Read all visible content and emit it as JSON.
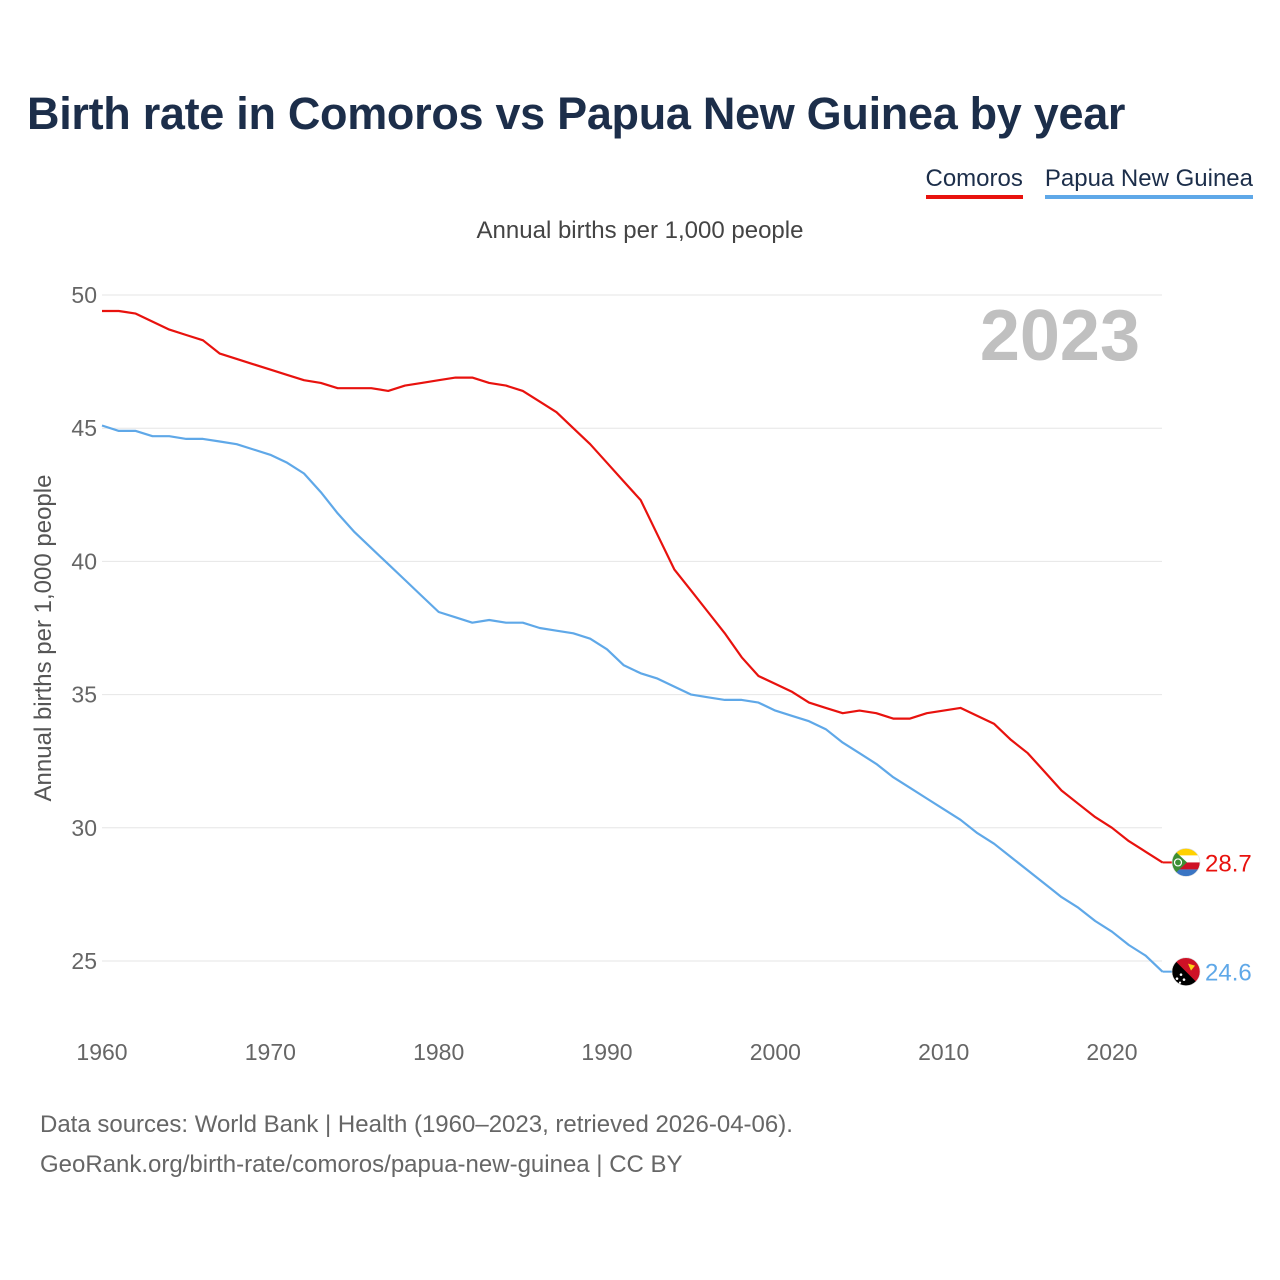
{
  "title": "Birth rate in Comoros vs Papua New Guinea by year",
  "legend": {
    "comoros": "Comoros",
    "png": "Papua New Guinea"
  },
  "subtitle": "Annual births per 1,000 people",
  "source": {
    "line1": "Data sources: World Bank | Health (1960–2023, retrieved 2026-04-06).",
    "line2": "GeoRank.org/birth-rate/comoros/papua-new-guinea | CC BY"
  },
  "colors": {
    "comoros": "#e8120e",
    "png": "#5fa8e8",
    "title": "#1c2e4a",
    "grid": "#e6e6e6",
    "year_watermark": "#c0c0c0"
  },
  "chart_data": {
    "type": "line",
    "title": "Birth rate in Comoros vs Papua New Guinea by year",
    "ylabel": "Annual births per 1,000 people",
    "xlabel": "",
    "xlim": [
      1960,
      2023
    ],
    "ylim": [
      23,
      50
    ],
    "year_label": "2023",
    "y_ticks": [
      25,
      30,
      35,
      40,
      45,
      50
    ],
    "x_ticks": [
      1960,
      1970,
      1980,
      1990,
      2000,
      2010,
      2020
    ],
    "grid": true,
    "x": [
      1960,
      1961,
      1962,
      1963,
      1964,
      1965,
      1966,
      1967,
      1968,
      1969,
      1970,
      1971,
      1972,
      1973,
      1974,
      1975,
      1976,
      1977,
      1978,
      1979,
      1980,
      1981,
      1982,
      1983,
      1984,
      1985,
      1986,
      1987,
      1988,
      1989,
      1990,
      1991,
      1992,
      1993,
      1994,
      1995,
      1996,
      1997,
      1998,
      1999,
      2000,
      2001,
      2002,
      2003,
      2004,
      2005,
      2006,
      2007,
      2008,
      2009,
      2010,
      2011,
      2012,
      2013,
      2014,
      2015,
      2016,
      2017,
      2018,
      2019,
      2020,
      2021,
      2022,
      2023
    ],
    "series": [
      {
        "name": "Comoros",
        "color": "#e8120e",
        "end_label": "28.7",
        "flag": "comoros-flag-icon",
        "values": [
          49.4,
          49.4,
          49.3,
          49.0,
          48.7,
          48.5,
          48.3,
          47.8,
          47.6,
          47.4,
          47.2,
          47.0,
          46.8,
          46.7,
          46.5,
          46.5,
          46.5,
          46.4,
          46.6,
          46.7,
          46.8,
          46.9,
          46.9,
          46.7,
          46.6,
          46.4,
          46.0,
          45.6,
          45.0,
          44.4,
          43.7,
          43.0,
          42.3,
          41.0,
          39.7,
          38.9,
          38.1,
          37.3,
          36.4,
          35.7,
          35.4,
          35.1,
          34.7,
          34.5,
          34.3,
          34.4,
          34.3,
          34.1,
          34.1,
          34.3,
          34.4,
          34.5,
          34.2,
          33.9,
          33.3,
          32.8,
          32.1,
          31.4,
          30.9,
          30.4,
          30.0,
          29.5,
          29.1,
          28.7
        ]
      },
      {
        "name": "Papua New Guinea",
        "color": "#5fa8e8",
        "end_label": "24.6",
        "flag": "png-flag-icon",
        "values": [
          45.1,
          44.9,
          44.9,
          44.7,
          44.7,
          44.6,
          44.6,
          44.5,
          44.4,
          44.2,
          44.0,
          43.7,
          43.3,
          42.6,
          41.8,
          41.1,
          40.5,
          39.9,
          39.3,
          38.7,
          38.1,
          37.9,
          37.7,
          37.8,
          37.7,
          37.7,
          37.5,
          37.4,
          37.3,
          37.1,
          36.7,
          36.1,
          35.8,
          35.6,
          35.3,
          35.0,
          34.9,
          34.8,
          34.8,
          34.7,
          34.4,
          34.2,
          34.0,
          33.7,
          33.2,
          32.8,
          32.4,
          31.9,
          31.5,
          31.1,
          30.7,
          30.3,
          29.8,
          29.4,
          28.9,
          28.4,
          27.9,
          27.4,
          27.0,
          26.5,
          26.1,
          25.6,
          25.2,
          24.6
        ]
      }
    ]
  }
}
